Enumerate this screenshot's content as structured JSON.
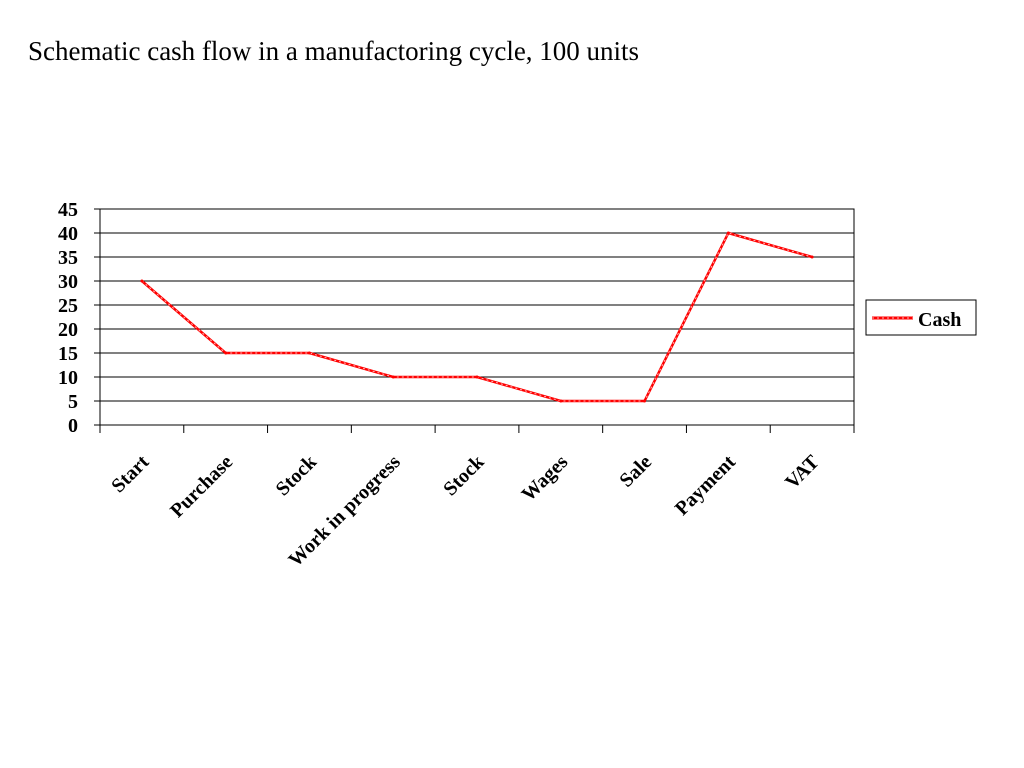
{
  "title": "Schematic cash flow in a manufactoring cycle, 100 units",
  "chart_data": {
    "type": "line",
    "categories": [
      "Start",
      "Purchase",
      "Stock",
      "Work in progress",
      "Stock",
      "Wages",
      "Sale",
      "Payment",
      "VAT"
    ],
    "x": [
      0,
      1,
      2,
      3,
      4,
      5,
      6,
      7,
      8,
      9
    ],
    "series": [
      {
        "name": "Cash",
        "color": "#ff0000",
        "points": [
          [
            0.5,
            30
          ],
          [
            1.5,
            15
          ],
          [
            2.5,
            15
          ],
          [
            3.5,
            10
          ],
          [
            4.5,
            10
          ],
          [
            5.5,
            5
          ],
          [
            6.5,
            5
          ],
          [
            7.5,
            40
          ],
          [
            8.5,
            35
          ]
        ]
      }
    ],
    "yticks": [
      0,
      5,
      10,
      15,
      20,
      25,
      30,
      35,
      40,
      45
    ],
    "ylim": [
      0,
      45
    ],
    "xlim": [
      0,
      9
    ],
    "grid": true,
    "legend": "right"
  }
}
